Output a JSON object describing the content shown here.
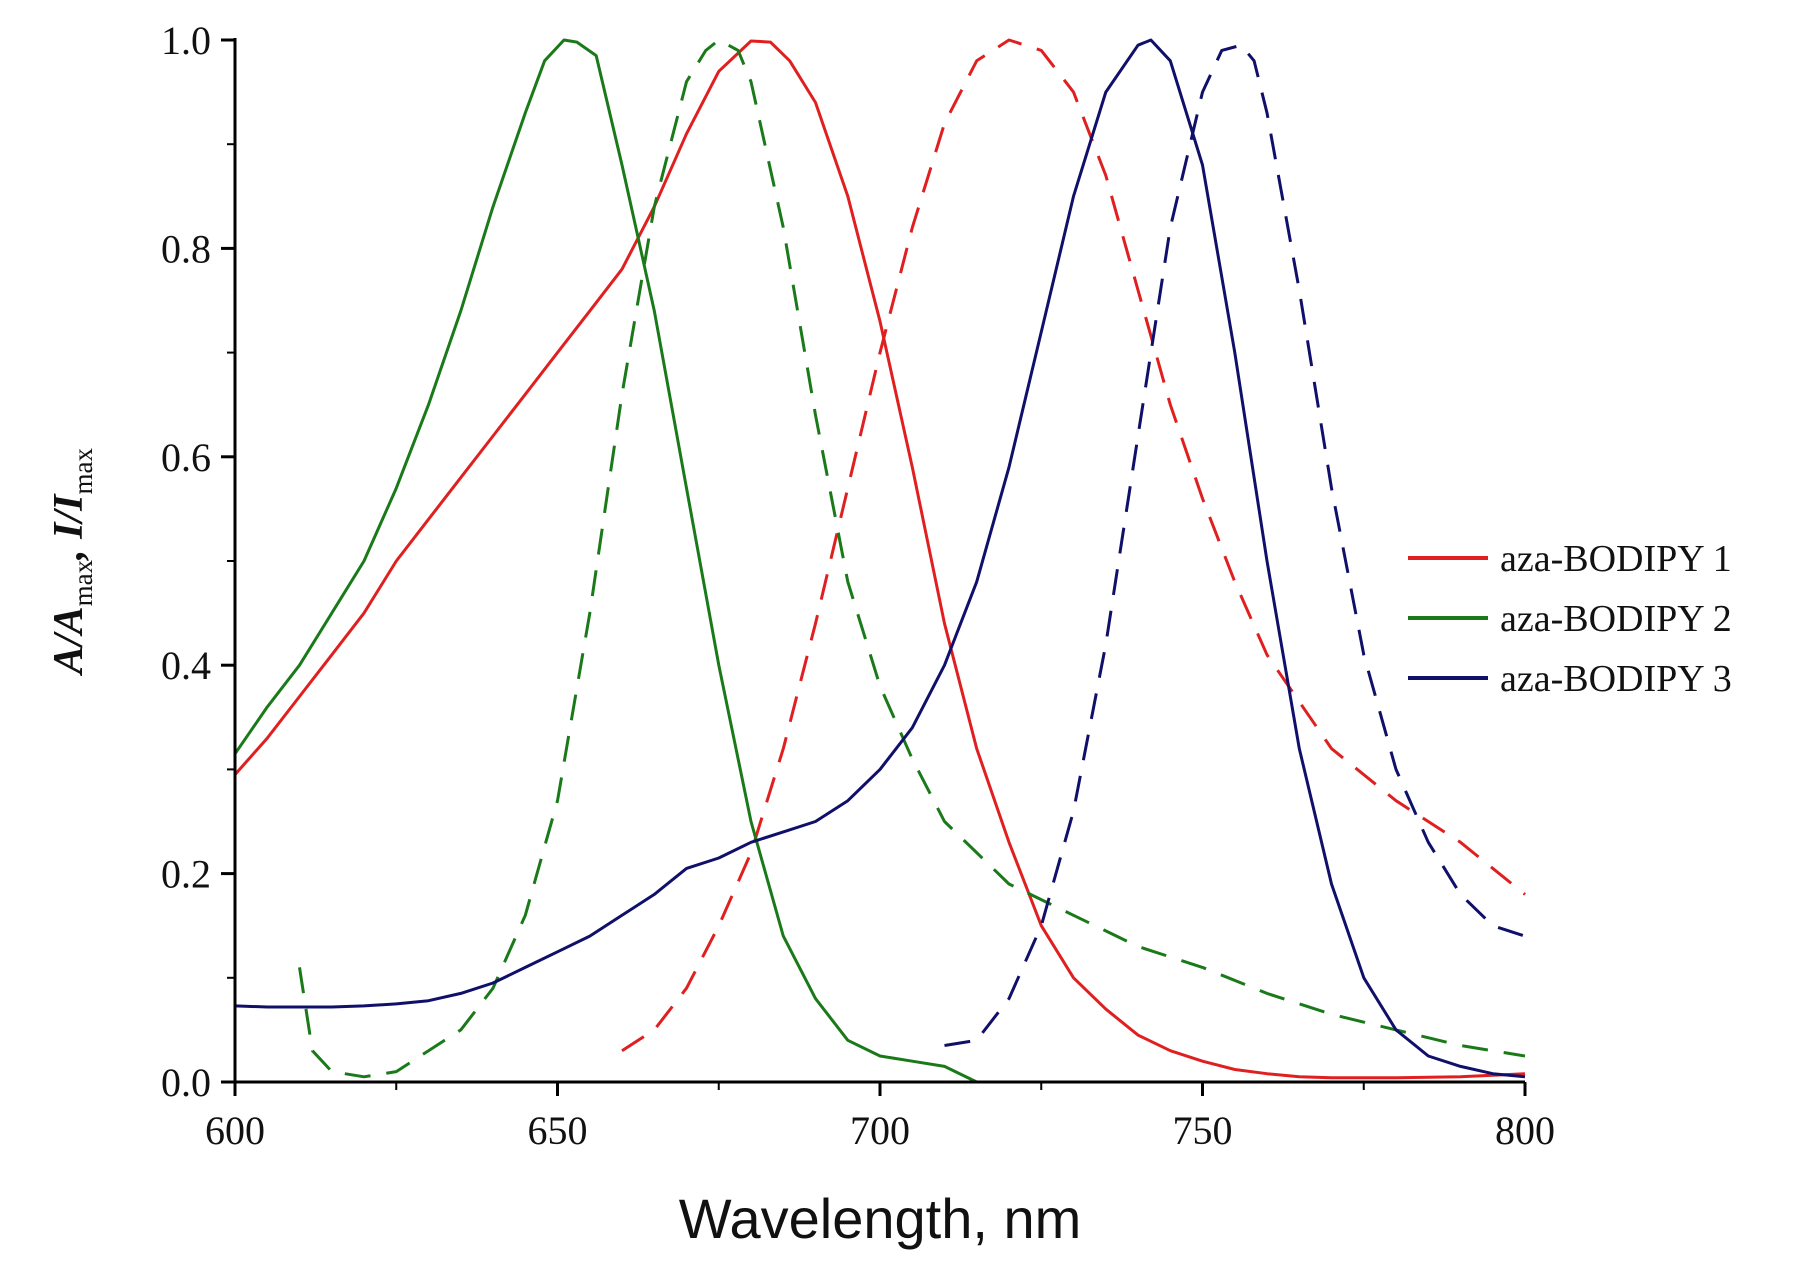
{
  "chart_data": {
    "type": "line",
    "title": "",
    "xlabel": "Wavelength, nm",
    "ylabel": {
      "parts": [
        {
          "text": "A/A",
          "sub": false
        },
        {
          "text": "max",
          "sub": true
        },
        {
          "text": ", I/I",
          "sub": false
        },
        {
          "text": "max",
          "sub": true
        }
      ]
    },
    "xlim": [
      600,
      800
    ],
    "ylim": [
      0.0,
      1.0
    ],
    "xticks": [
      {
        "value": 600,
        "label": "600"
      },
      {
        "value": 650,
        "label": "650"
      },
      {
        "value": 700,
        "label": "700"
      },
      {
        "value": 750,
        "label": "750"
      },
      {
        "value": 800,
        "label": "800"
      }
    ],
    "yticks": [
      {
        "value": 0.0,
        "label": "0.0"
      },
      {
        "value": 0.2,
        "label": "0.2"
      },
      {
        "value": 0.4,
        "label": "0.4"
      },
      {
        "value": 0.6,
        "label": "0.6"
      },
      {
        "value": 0.8,
        "label": "0.8"
      },
      {
        "value": 1.0,
        "label": "1.0"
      }
    ],
    "legend_position": "right",
    "legend": [
      {
        "label": "aza-BODIPY 1",
        "color": "#e02020"
      },
      {
        "label": "aza-BODIPY 2",
        "color": "#1a7a1a"
      },
      {
        "label": "aza-BODIPY 3",
        "color": "#10106a"
      }
    ],
    "series": [
      {
        "name": "aza-BODIPY 1 absorption",
        "color": "#e02020",
        "style": "solid",
        "x": [
          600,
          605,
          610,
          615,
          620,
          625,
          630,
          635,
          640,
          645,
          650,
          655,
          660,
          665,
          670,
          675,
          680,
          683,
          686,
          690,
          695,
          700,
          705,
          710,
          715,
          720,
          725,
          730,
          735,
          740,
          745,
          750,
          755,
          760,
          765,
          770,
          780,
          790,
          800
        ],
        "y": [
          0.295,
          0.33,
          0.37,
          0.41,
          0.45,
          0.5,
          0.54,
          0.58,
          0.62,
          0.66,
          0.7,
          0.74,
          0.78,
          0.84,
          0.91,
          0.97,
          0.999,
          0.998,
          0.98,
          0.94,
          0.85,
          0.73,
          0.59,
          0.44,
          0.32,
          0.23,
          0.15,
          0.1,
          0.07,
          0.045,
          0.03,
          0.02,
          0.012,
          0.008,
          0.005,
          0.004,
          0.004,
          0.005,
          0.008
        ]
      },
      {
        "name": "aza-BODIPY 1 emission",
        "color": "#e02020",
        "style": "dashed",
        "x": [
          660,
          665,
          670,
          675,
          680,
          685,
          690,
          695,
          700,
          705,
          710,
          715,
          720,
          725,
          730,
          735,
          740,
          745,
          750,
          755,
          760,
          770,
          780,
          790,
          800
        ],
        "y": [
          0.03,
          0.05,
          0.09,
          0.15,
          0.22,
          0.32,
          0.44,
          0.57,
          0.7,
          0.82,
          0.92,
          0.98,
          1.0,
          0.99,
          0.95,
          0.87,
          0.76,
          0.65,
          0.56,
          0.48,
          0.41,
          0.32,
          0.27,
          0.23,
          0.18
        ]
      },
      {
        "name": "aza-BODIPY 2 absorption",
        "color": "#1a7a1a",
        "style": "solid",
        "x": [
          600,
          605,
          610,
          615,
          620,
          625,
          630,
          635,
          640,
          645,
          648,
          651,
          653,
          656,
          660,
          665,
          670,
          675,
          680,
          685,
          690,
          695,
          700,
          705,
          710,
          715
        ],
        "y": [
          0.315,
          0.36,
          0.4,
          0.45,
          0.5,
          0.57,
          0.65,
          0.74,
          0.84,
          0.93,
          0.98,
          1.0,
          0.998,
          0.985,
          0.88,
          0.74,
          0.57,
          0.4,
          0.25,
          0.14,
          0.08,
          0.04,
          0.025,
          0.02,
          0.015,
          0.0
        ]
      },
      {
        "name": "aza-BODIPY 2 emission",
        "color": "#1a7a1a",
        "style": "dashed",
        "x": [
          610,
          612,
          615,
          620,
          625,
          630,
          635,
          640,
          645,
          650,
          655,
          660,
          665,
          670,
          673,
          675,
          678,
          680,
          685,
          690,
          695,
          700,
          705,
          710,
          720,
          730,
          740,
          750,
          760,
          770,
          780,
          790,
          800
        ],
        "y": [
          0.11,
          0.03,
          0.01,
          0.005,
          0.01,
          0.03,
          0.05,
          0.09,
          0.16,
          0.27,
          0.45,
          0.66,
          0.84,
          0.96,
          0.99,
          1.0,
          0.99,
          0.96,
          0.82,
          0.64,
          0.48,
          0.38,
          0.31,
          0.25,
          0.19,
          0.16,
          0.13,
          0.11,
          0.085,
          0.065,
          0.05,
          0.035,
          0.025
        ]
      },
      {
        "name": "aza-BODIPY 3 absorption",
        "color": "#10106a",
        "style": "solid",
        "x": [
          600,
          605,
          610,
          615,
          620,
          625,
          630,
          635,
          640,
          645,
          650,
          655,
          660,
          665,
          670,
          675,
          680,
          685,
          690,
          695,
          700,
          705,
          710,
          715,
          720,
          725,
          730,
          735,
          740,
          742,
          745,
          750,
          755,
          760,
          765,
          770,
          775,
          780,
          785,
          790,
          795,
          800
        ],
        "y": [
          0.073,
          0.072,
          0.072,
          0.072,
          0.073,
          0.075,
          0.078,
          0.085,
          0.095,
          0.11,
          0.125,
          0.14,
          0.16,
          0.18,
          0.205,
          0.215,
          0.23,
          0.24,
          0.25,
          0.27,
          0.3,
          0.34,
          0.4,
          0.48,
          0.59,
          0.72,
          0.85,
          0.95,
          0.995,
          1.0,
          0.98,
          0.88,
          0.7,
          0.5,
          0.32,
          0.19,
          0.1,
          0.05,
          0.025,
          0.015,
          0.008,
          0.005
        ]
      },
      {
        "name": "aza-BODIPY 3 emission",
        "color": "#10106a",
        "style": "dashed",
        "x": [
          710,
          715,
          720,
          725,
          730,
          735,
          740,
          745,
          750,
          753,
          756,
          758,
          760,
          765,
          770,
          775,
          780,
          785,
          790,
          795,
          800
        ],
        "y": [
          0.035,
          0.04,
          0.08,
          0.15,
          0.26,
          0.42,
          0.62,
          0.82,
          0.95,
          0.99,
          0.995,
          0.98,
          0.93,
          0.76,
          0.57,
          0.41,
          0.3,
          0.23,
          0.18,
          0.15,
          0.14
        ]
      }
    ]
  }
}
